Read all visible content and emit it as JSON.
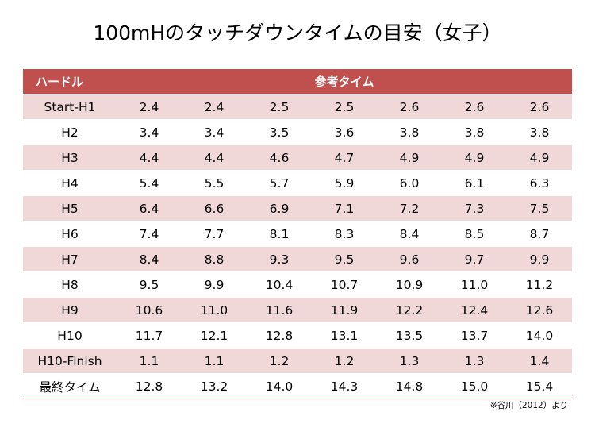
{
  "title": "100mHのタッチダウンタイムの目安（女子）",
  "table": {
    "header_label": "ハードル",
    "header_values": "参考タイム",
    "accent_color": "#c0504d",
    "band_color": "#f0d8d8",
    "rows": [
      {
        "label": "Start-H1",
        "values": [
          "2.4",
          "2.4",
          "2.5",
          "2.5",
          "2.6",
          "2.6",
          "2.6"
        ]
      },
      {
        "label": "H2",
        "values": [
          "3.4",
          "3.4",
          "3.5",
          "3.6",
          "3.8",
          "3.8",
          "3.8"
        ]
      },
      {
        "label": "H3",
        "values": [
          "4.4",
          "4.4",
          "4.6",
          "4.7",
          "4.9",
          "4.9",
          "4.9"
        ]
      },
      {
        "label": "H4",
        "values": [
          "5.4",
          "5.5",
          "5.7",
          "5.9",
          "6.0",
          "6.1",
          "6.3"
        ]
      },
      {
        "label": "H5",
        "values": [
          "6.4",
          "6.6",
          "6.9",
          "7.1",
          "7.2",
          "7.3",
          "7.5"
        ]
      },
      {
        "label": "H6",
        "values": [
          "7.4",
          "7.7",
          "8.1",
          "8.3",
          "8.4",
          "8.5",
          "8.7"
        ]
      },
      {
        "label": "H7",
        "values": [
          "8.4",
          "8.8",
          "9.3",
          "9.5",
          "9.6",
          "9.7",
          "9.9"
        ]
      },
      {
        "label": "H8",
        "values": [
          "9.5",
          "9.9",
          "10.4",
          "10.7",
          "10.9",
          "11.0",
          "11.2"
        ]
      },
      {
        "label": "H9",
        "values": [
          "10.6",
          "11.0",
          "11.6",
          "11.9",
          "12.2",
          "12.4",
          "12.6"
        ]
      },
      {
        "label": "H10",
        "values": [
          "11.7",
          "12.1",
          "12.8",
          "13.1",
          "13.5",
          "13.7",
          "14.0"
        ]
      },
      {
        "label": "H10-Finish",
        "values": [
          "1.1",
          "1.1",
          "1.2",
          "1.2",
          "1.3",
          "1.3",
          "1.4"
        ]
      },
      {
        "label": "最終タイム",
        "values": [
          "12.8",
          "13.2",
          "14.0",
          "14.3",
          "14.8",
          "15.0",
          "15.4"
        ]
      }
    ]
  },
  "source_note": "※谷川（2012）より"
}
